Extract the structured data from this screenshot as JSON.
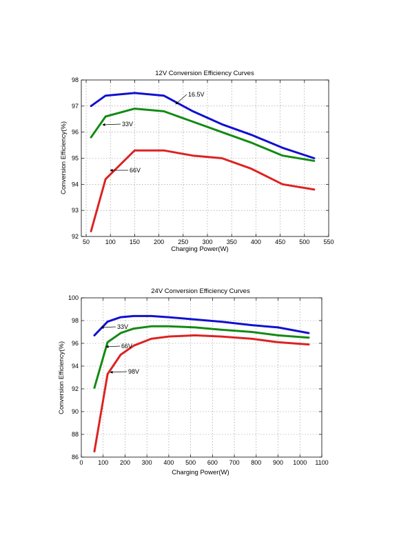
{
  "chart_data": [
    {
      "type": "line",
      "title": "12V Conversion Efficiency Curves",
      "xlabel": "Charging Power(W)",
      "ylabel": "Conversion Efficiency(%)",
      "xlim": [
        40,
        550
      ],
      "ylim": [
        92,
        98
      ],
      "xticks": [
        50,
        100,
        150,
        200,
        250,
        300,
        350,
        400,
        450,
        500,
        550
      ],
      "yticks": [
        92,
        93,
        94,
        95,
        96,
        97,
        98
      ],
      "grid": true,
      "series": [
        {
          "name": "16.5V",
          "color": "#1010d0",
          "x": [
            60,
            90,
            150,
            210,
            270,
            330,
            390,
            455,
            520
          ],
          "y": [
            97.0,
            97.4,
            97.5,
            97.4,
            96.8,
            96.3,
            95.9,
            95.4,
            95.0
          ]
        },
        {
          "name": "33V",
          "color": "#138a13",
          "x": [
            60,
            90,
            150,
            210,
            270,
            330,
            390,
            455,
            520
          ],
          "y": [
            95.8,
            96.6,
            96.9,
            96.8,
            96.4,
            96.0,
            95.6,
            95.1,
            94.9
          ]
        },
        {
          "name": "66V",
          "color": "#dd2222",
          "x": [
            60,
            90,
            150,
            210,
            270,
            330,
            390,
            455,
            520
          ],
          "y": [
            92.2,
            94.2,
            95.3,
            95.3,
            95.1,
            95.0,
            94.6,
            94.0,
            93.8
          ]
        }
      ],
      "annotations": [
        {
          "text": "16.5V",
          "series": "16.5V",
          "x": 240,
          "y": 97.1
        },
        {
          "text": "33V",
          "series": "33V",
          "x": 90,
          "y": 96.3
        },
        {
          "text": "66V",
          "series": "66V",
          "x": 120,
          "y": 94.8
        }
      ]
    },
    {
      "type": "line",
      "title": "24V Conversion Efficiency Curves",
      "xlabel": "Charging Power(W)",
      "ylabel": "Conversion Efficiency(%)",
      "xlim": [
        0,
        1100
      ],
      "ylim": [
        86,
        100
      ],
      "xticks": [
        0,
        100,
        200,
        300,
        400,
        500,
        600,
        700,
        800,
        900,
        1000,
        1100
      ],
      "yticks": [
        86,
        88,
        90,
        92,
        94,
        96,
        98,
        100
      ],
      "grid": true,
      "series": [
        {
          "name": "33V",
          "color": "#1010d0",
          "x": [
            60,
            120,
            180,
            240,
            320,
            400,
            520,
            640,
            780,
            900,
            1040
          ],
          "y": [
            96.7,
            97.9,
            98.3,
            98.4,
            98.4,
            98.3,
            98.1,
            97.9,
            97.6,
            97.4,
            96.9
          ]
        },
        {
          "name": "66V",
          "color": "#138a13",
          "x": [
            60,
            120,
            180,
            240,
            320,
            400,
            520,
            640,
            780,
            900,
            1040
          ],
          "y": [
            92.1,
            96.1,
            96.9,
            97.3,
            97.5,
            97.5,
            97.4,
            97.2,
            97.0,
            96.7,
            96.5
          ]
        },
        {
          "name": "98V",
          "color": "#dd2222",
          "x": [
            60,
            120,
            180,
            240,
            320,
            400,
            520,
            640,
            780,
            900,
            1040
          ],
          "y": [
            86.5,
            93.3,
            95.0,
            95.8,
            96.4,
            96.6,
            96.7,
            96.6,
            96.4,
            96.1,
            95.9
          ]
        }
      ],
      "annotations": [
        {
          "text": "33V",
          "series": "33V",
          "x": 90,
          "y": 97.6
        },
        {
          "text": "66V",
          "series": "66V",
          "x": 115,
          "y": 95.8
        },
        {
          "text": "98V",
          "series": "98V",
          "x": 125,
          "y": 93.7
        }
      ]
    }
  ]
}
